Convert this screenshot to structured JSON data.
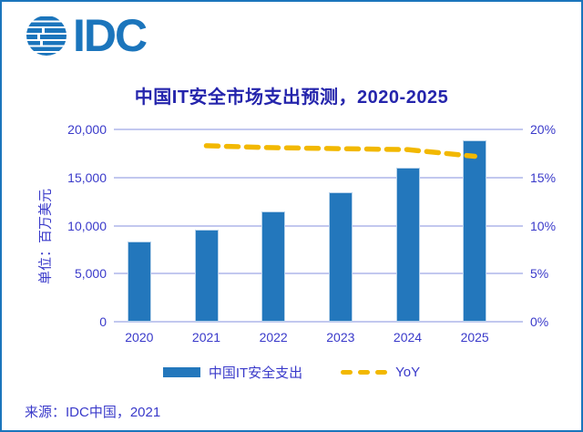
{
  "frame": {
    "border_color": "#1b75bc",
    "background": "#ffffff"
  },
  "logo": {
    "text": "IDC",
    "color": "#1b75bc",
    "icon": "striped-globe-icon"
  },
  "header": {
    "title": "中国IT安全市场支出预测，2020-2025"
  },
  "chart_data": {
    "type": "bar",
    "title": "中国IT安全市场支出预测，2020-2025",
    "categories": [
      "2020",
      "2021",
      "2022",
      "2023",
      "2024",
      "2025"
    ],
    "series": [
      {
        "name": "中国IT安全支出",
        "type": "bar",
        "axis": "left",
        "color": "#2377bc",
        "values": [
          8300,
          9600,
          11500,
          13500,
          16000,
          18900
        ]
      },
      {
        "name": "YoY",
        "type": "line",
        "style": "dashed",
        "axis": "right",
        "color": "#f2b800",
        "values": [
          null,
          18.3,
          18.1,
          18.0,
          17.9,
          17.2
        ]
      }
    ],
    "left_axis": {
      "title": "单位：百万美元",
      "min": 0,
      "max": 20000,
      "ticks": [
        "20,000",
        "15,000",
        "10,000",
        "5,000",
        "0"
      ]
    },
    "right_axis": {
      "min": 0,
      "max": 20,
      "ticks": [
        "20%",
        "15%",
        "10%",
        "5%",
        "0%"
      ]
    },
    "grid": true,
    "legend_position": "bottom",
    "colors": {
      "grid": "#c2c8ef",
      "axis_text": "#3a3aca",
      "title_text": "#2525ac"
    }
  },
  "legend": {
    "bar_label": "中国IT安全支出",
    "line_label": "YoY"
  },
  "footer": {
    "source": "来源：IDC中国，2021"
  }
}
